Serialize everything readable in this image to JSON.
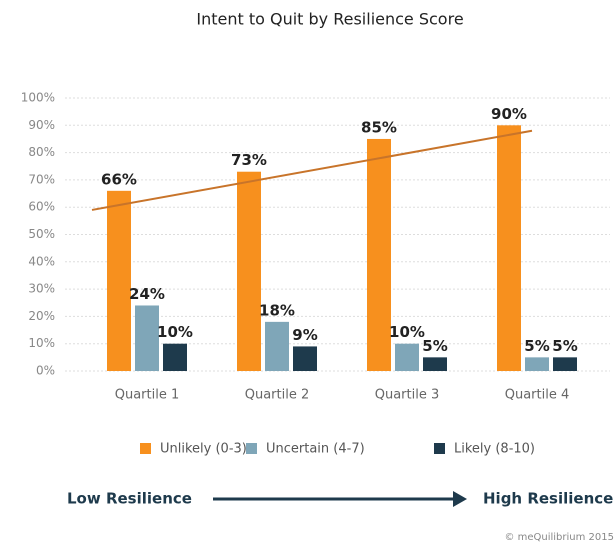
{
  "chart_data": {
    "type": "bar",
    "title": "Intent to Quit by Resilience Score",
    "categories": [
      "Quartile 1",
      "Quartile 2",
      "Quartile 3",
      "Quartile 4"
    ],
    "series": [
      {
        "name": "Unlikely (0-3)",
        "color": "#f7901e",
        "values": [
          66,
          73,
          85,
          90
        ],
        "value_labels": [
          "66%",
          "73%",
          "85%",
          "90%"
        ]
      },
      {
        "name": "Uncertain (4-7)",
        "color": "#7fa6b8",
        "values": [
          24,
          18,
          10,
          5
        ],
        "value_labels": [
          "24%",
          "18%",
          "10%",
          "5%"
        ]
      },
      {
        "name": "Likely (8-10)",
        "color": "#1e3a4c",
        "values": [
          10,
          9,
          5,
          5
        ],
        "value_labels": [
          "10%",
          "9%",
          "5%",
          "5%"
        ]
      }
    ],
    "trendline": {
      "color": "#c8742a",
      "values": [
        59,
        88
      ]
    },
    "ylim": [
      0,
      100
    ],
    "yticks": [
      {
        "value": 0,
        "label": "0%"
      },
      {
        "value": 10,
        "label": "10%"
      },
      {
        "value": 20,
        "label": "20%"
      },
      {
        "value": 30,
        "label": "30%"
      },
      {
        "value": 40,
        "label": "40%"
      },
      {
        "value": 50,
        "label": "50%"
      },
      {
        "value": 60,
        "label": "60%"
      },
      {
        "value": 70,
        "label": "70%"
      },
      {
        "value": 80,
        "label": "80%"
      },
      {
        "value": 90,
        "label": "90%"
      },
      {
        "value": 100,
        "label": "100%"
      }
    ],
    "grid": true,
    "footer": {
      "left": "Low Resilience",
      "right": "High Resilience",
      "credit": "© meQuilibrium 2015"
    }
  }
}
